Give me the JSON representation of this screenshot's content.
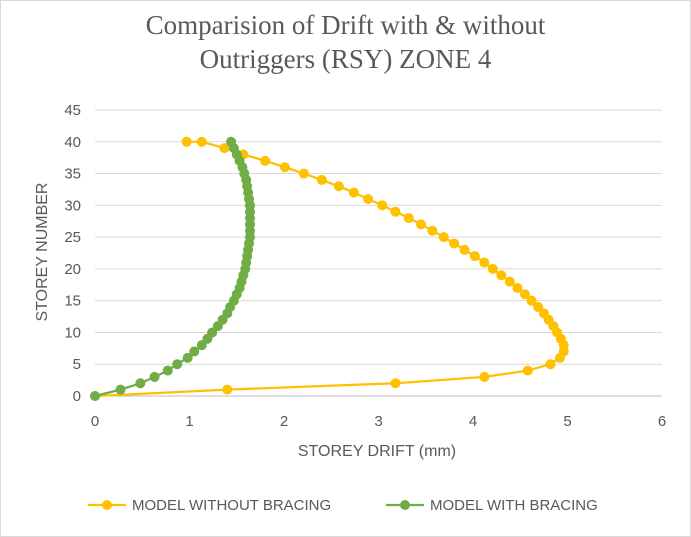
{
  "chart_data": {
    "type": "line",
    "title_line1": "Comparision of Drift with & without",
    "title_line2": "Outriggers (RSY) ZONE 4",
    "xlabel": "STOREY DRIFT (mm)",
    "ylabel": "STOREY NUMBER",
    "xlim": [
      0,
      6
    ],
    "ylim": [
      0,
      45
    ],
    "xticks": [
      0,
      1,
      2,
      3,
      4,
      5,
      6
    ],
    "yticks": [
      0,
      5,
      10,
      15,
      20,
      25,
      30,
      35,
      40,
      45
    ],
    "grid": "horizontal",
    "legend_position": "bottom",
    "series": [
      {
        "name": "MODEL WITHOUT BRACING",
        "color": "#FFC000",
        "points": [
          [
            0,
            0
          ],
          [
            1.4,
            1
          ],
          [
            3.18,
            2
          ],
          [
            4.12,
            3
          ],
          [
            4.58,
            4
          ],
          [
            4.82,
            5
          ],
          [
            4.92,
            6
          ],
          [
            4.96,
            7
          ],
          [
            4.96,
            8
          ],
          [
            4.93,
            9
          ],
          [
            4.89,
            10
          ],
          [
            4.85,
            11
          ],
          [
            4.8,
            12
          ],
          [
            4.75,
            13
          ],
          [
            4.69,
            14
          ],
          [
            4.62,
            15
          ],
          [
            4.55,
            16
          ],
          [
            4.47,
            17
          ],
          [
            4.39,
            18
          ],
          [
            4.3,
            19
          ],
          [
            4.21,
            20
          ],
          [
            4.12,
            21
          ],
          [
            4.02,
            22
          ],
          [
            3.91,
            23
          ],
          [
            3.8,
            24
          ],
          [
            3.69,
            25
          ],
          [
            3.57,
            26
          ],
          [
            3.45,
            27
          ],
          [
            3.32,
            28
          ],
          [
            3.18,
            29
          ],
          [
            3.04,
            30
          ],
          [
            2.89,
            31
          ],
          [
            2.74,
            32
          ],
          [
            2.58,
            33
          ],
          [
            2.4,
            34
          ],
          [
            2.21,
            35
          ],
          [
            2.01,
            36
          ],
          [
            1.8,
            37
          ],
          [
            1.57,
            38
          ],
          [
            1.37,
            39
          ],
          [
            1.13,
            40
          ],
          [
            0.97,
            40
          ]
        ]
      },
      {
        "name": "MODEL WITH BRACING",
        "color": "#70AD47",
        "points": [
          [
            0,
            0
          ],
          [
            0.27,
            1
          ],
          [
            0.48,
            2
          ],
          [
            0.63,
            3
          ],
          [
            0.77,
            4
          ],
          [
            0.87,
            5
          ],
          [
            0.98,
            6
          ],
          [
            1.05,
            7
          ],
          [
            1.13,
            8
          ],
          [
            1.19,
            9
          ],
          [
            1.24,
            10
          ],
          [
            1.3,
            11
          ],
          [
            1.35,
            12
          ],
          [
            1.4,
            13
          ],
          [
            1.43,
            14
          ],
          [
            1.47,
            15
          ],
          [
            1.5,
            16
          ],
          [
            1.53,
            17
          ],
          [
            1.55,
            18
          ],
          [
            1.57,
            19
          ],
          [
            1.59,
            20
          ],
          [
            1.6,
            21
          ],
          [
            1.61,
            22
          ],
          [
            1.62,
            23
          ],
          [
            1.63,
            24
          ],
          [
            1.64,
            25
          ],
          [
            1.64,
            26
          ],
          [
            1.64,
            27
          ],
          [
            1.64,
            28
          ],
          [
            1.64,
            29
          ],
          [
            1.64,
            30
          ],
          [
            1.63,
            31
          ],
          [
            1.62,
            32
          ],
          [
            1.61,
            33
          ],
          [
            1.6,
            34
          ],
          [
            1.58,
            35
          ],
          [
            1.56,
            36
          ],
          [
            1.53,
            37
          ],
          [
            1.5,
            38
          ],
          [
            1.47,
            39
          ],
          [
            1.44,
            40
          ]
        ]
      }
    ]
  }
}
